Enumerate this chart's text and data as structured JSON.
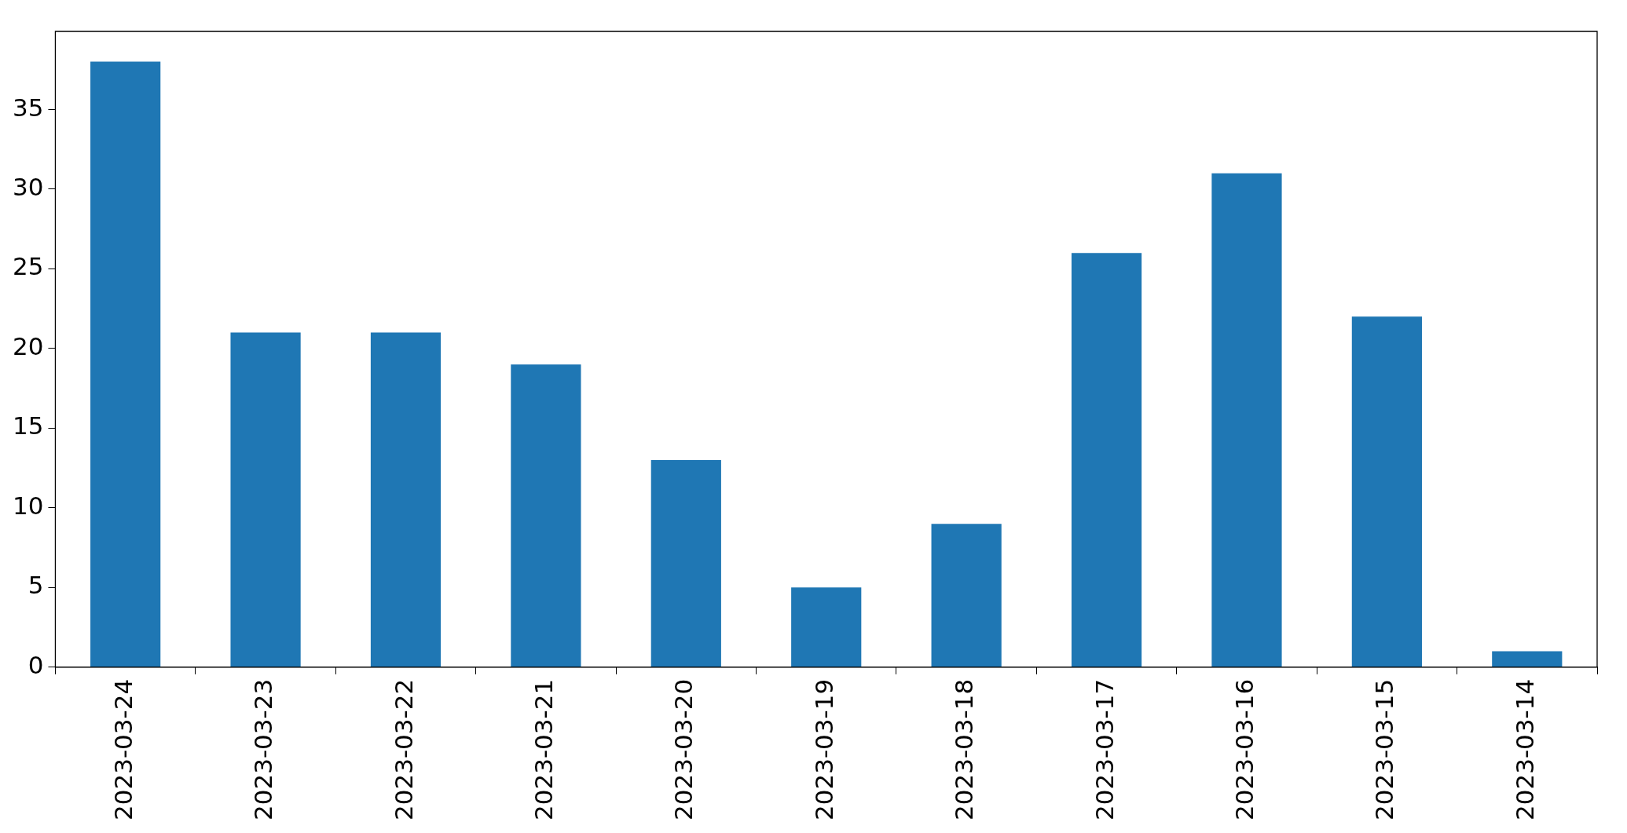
{
  "chart_data": {
    "type": "bar",
    "categories": [
      "2023-03-24",
      "2023-03-23",
      "2023-03-22",
      "2023-03-21",
      "2023-03-20",
      "2023-03-19",
      "2023-03-18",
      "2023-03-17",
      "2023-03-16",
      "2023-03-15",
      "2023-03-14"
    ],
    "values": [
      38,
      21,
      21,
      19,
      13,
      5,
      9,
      26,
      31,
      22,
      1
    ],
    "color": "#1f77b4",
    "ylim": [
      0,
      39.9
    ],
    "yticks": [
      0,
      5,
      10,
      15,
      20,
      25,
      30,
      35
    ],
    "grid": false,
    "legend": false
  }
}
